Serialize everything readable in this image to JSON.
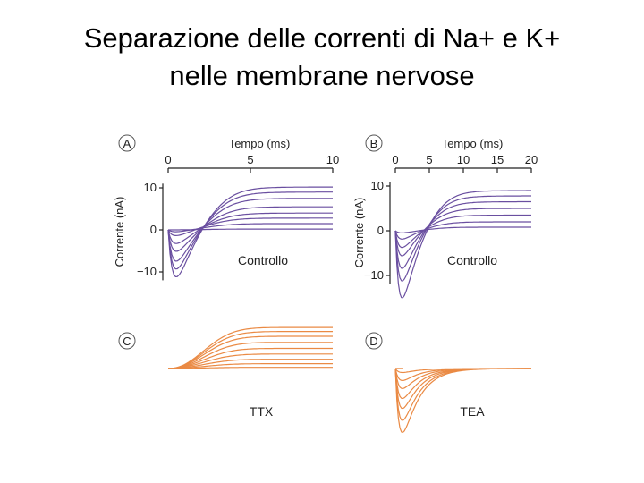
{
  "slide": {
    "title_line1": "Separazione delle correnti di Na+ e K+",
    "title_line2": "nelle membrane nervose"
  },
  "colors": {
    "control_trace": "#6a4fa0",
    "blocked_trace": "#ea8a44",
    "axis": "#222222",
    "text": "#222222"
  },
  "chart_data": [
    {
      "panel": "A",
      "type": "line",
      "xlabel": "Tempo (ms)",
      "ylabel": "Corrente (nA)",
      "xticks": [
        0,
        5,
        10
      ],
      "xlim": [
        0,
        10
      ],
      "yticks": [
        10,
        0,
        -10
      ],
      "ylim": [
        -13,
        12
      ],
      "caption": "Controllo",
      "family": "control",
      "series": [
        {
          "peak_inward": -12,
          "steady": 10.2
        },
        {
          "peak_inward": -10,
          "steady": 9.0
        },
        {
          "peak_inward": -8,
          "steady": 7.5
        },
        {
          "peak_inward": -5.5,
          "steady": 5.5
        },
        {
          "peak_inward": -3.5,
          "steady": 4.0
        },
        {
          "peak_inward": -1.5,
          "steady": 2.8
        },
        {
          "peak_inward": -0.5,
          "steady": 1.5
        },
        {
          "peak_inward": 0,
          "steady": 0.2
        }
      ]
    },
    {
      "panel": "B",
      "type": "line",
      "xlabel": "Tempo (ms)",
      "ylabel": "Corrente (nA)",
      "xticks": [
        0,
        5,
        10,
        15,
        20
      ],
      "xlim": [
        0,
        20
      ],
      "yticks": [
        10,
        0,
        -10
      ],
      "ylim": [
        -17,
        11
      ],
      "caption": "Controllo",
      "family": "control",
      "series": [
        {
          "peak_inward": -16,
          "steady": 9.0
        },
        {
          "peak_inward": -12,
          "steady": 7.8
        },
        {
          "peak_inward": -9,
          "steady": 6.5
        },
        {
          "peak_inward": -6,
          "steady": 5.0
        },
        {
          "peak_inward": -4,
          "steady": 3.5
        },
        {
          "peak_inward": -2,
          "steady": 2.0
        },
        {
          "peak_inward": -0.5,
          "steady": 0.8
        }
      ]
    },
    {
      "panel": "C",
      "type": "line",
      "caption": "TTX",
      "family": "blocked",
      "xlim": [
        0,
        10
      ],
      "series": [
        {
          "steady": 10.2
        },
        {
          "steady": 9.2
        },
        {
          "steady": 8.0
        },
        {
          "steady": 6.5
        },
        {
          "steady": 5.0
        },
        {
          "steady": 3.6
        },
        {
          "steady": 2.3
        },
        {
          "steady": 1.2
        },
        {
          "steady": 0.3
        }
      ]
    },
    {
      "panel": "D",
      "type": "line",
      "caption": "TEA",
      "family": "blocked",
      "xlim": [
        0,
        20
      ],
      "series": [
        {
          "peak_inward": -16
        },
        {
          "peak_inward": -13
        },
        {
          "peak_inward": -10
        },
        {
          "peak_inward": -7.5
        },
        {
          "peak_inward": -5
        },
        {
          "peak_inward": -3
        },
        {
          "peak_inward": -1
        }
      ]
    }
  ]
}
